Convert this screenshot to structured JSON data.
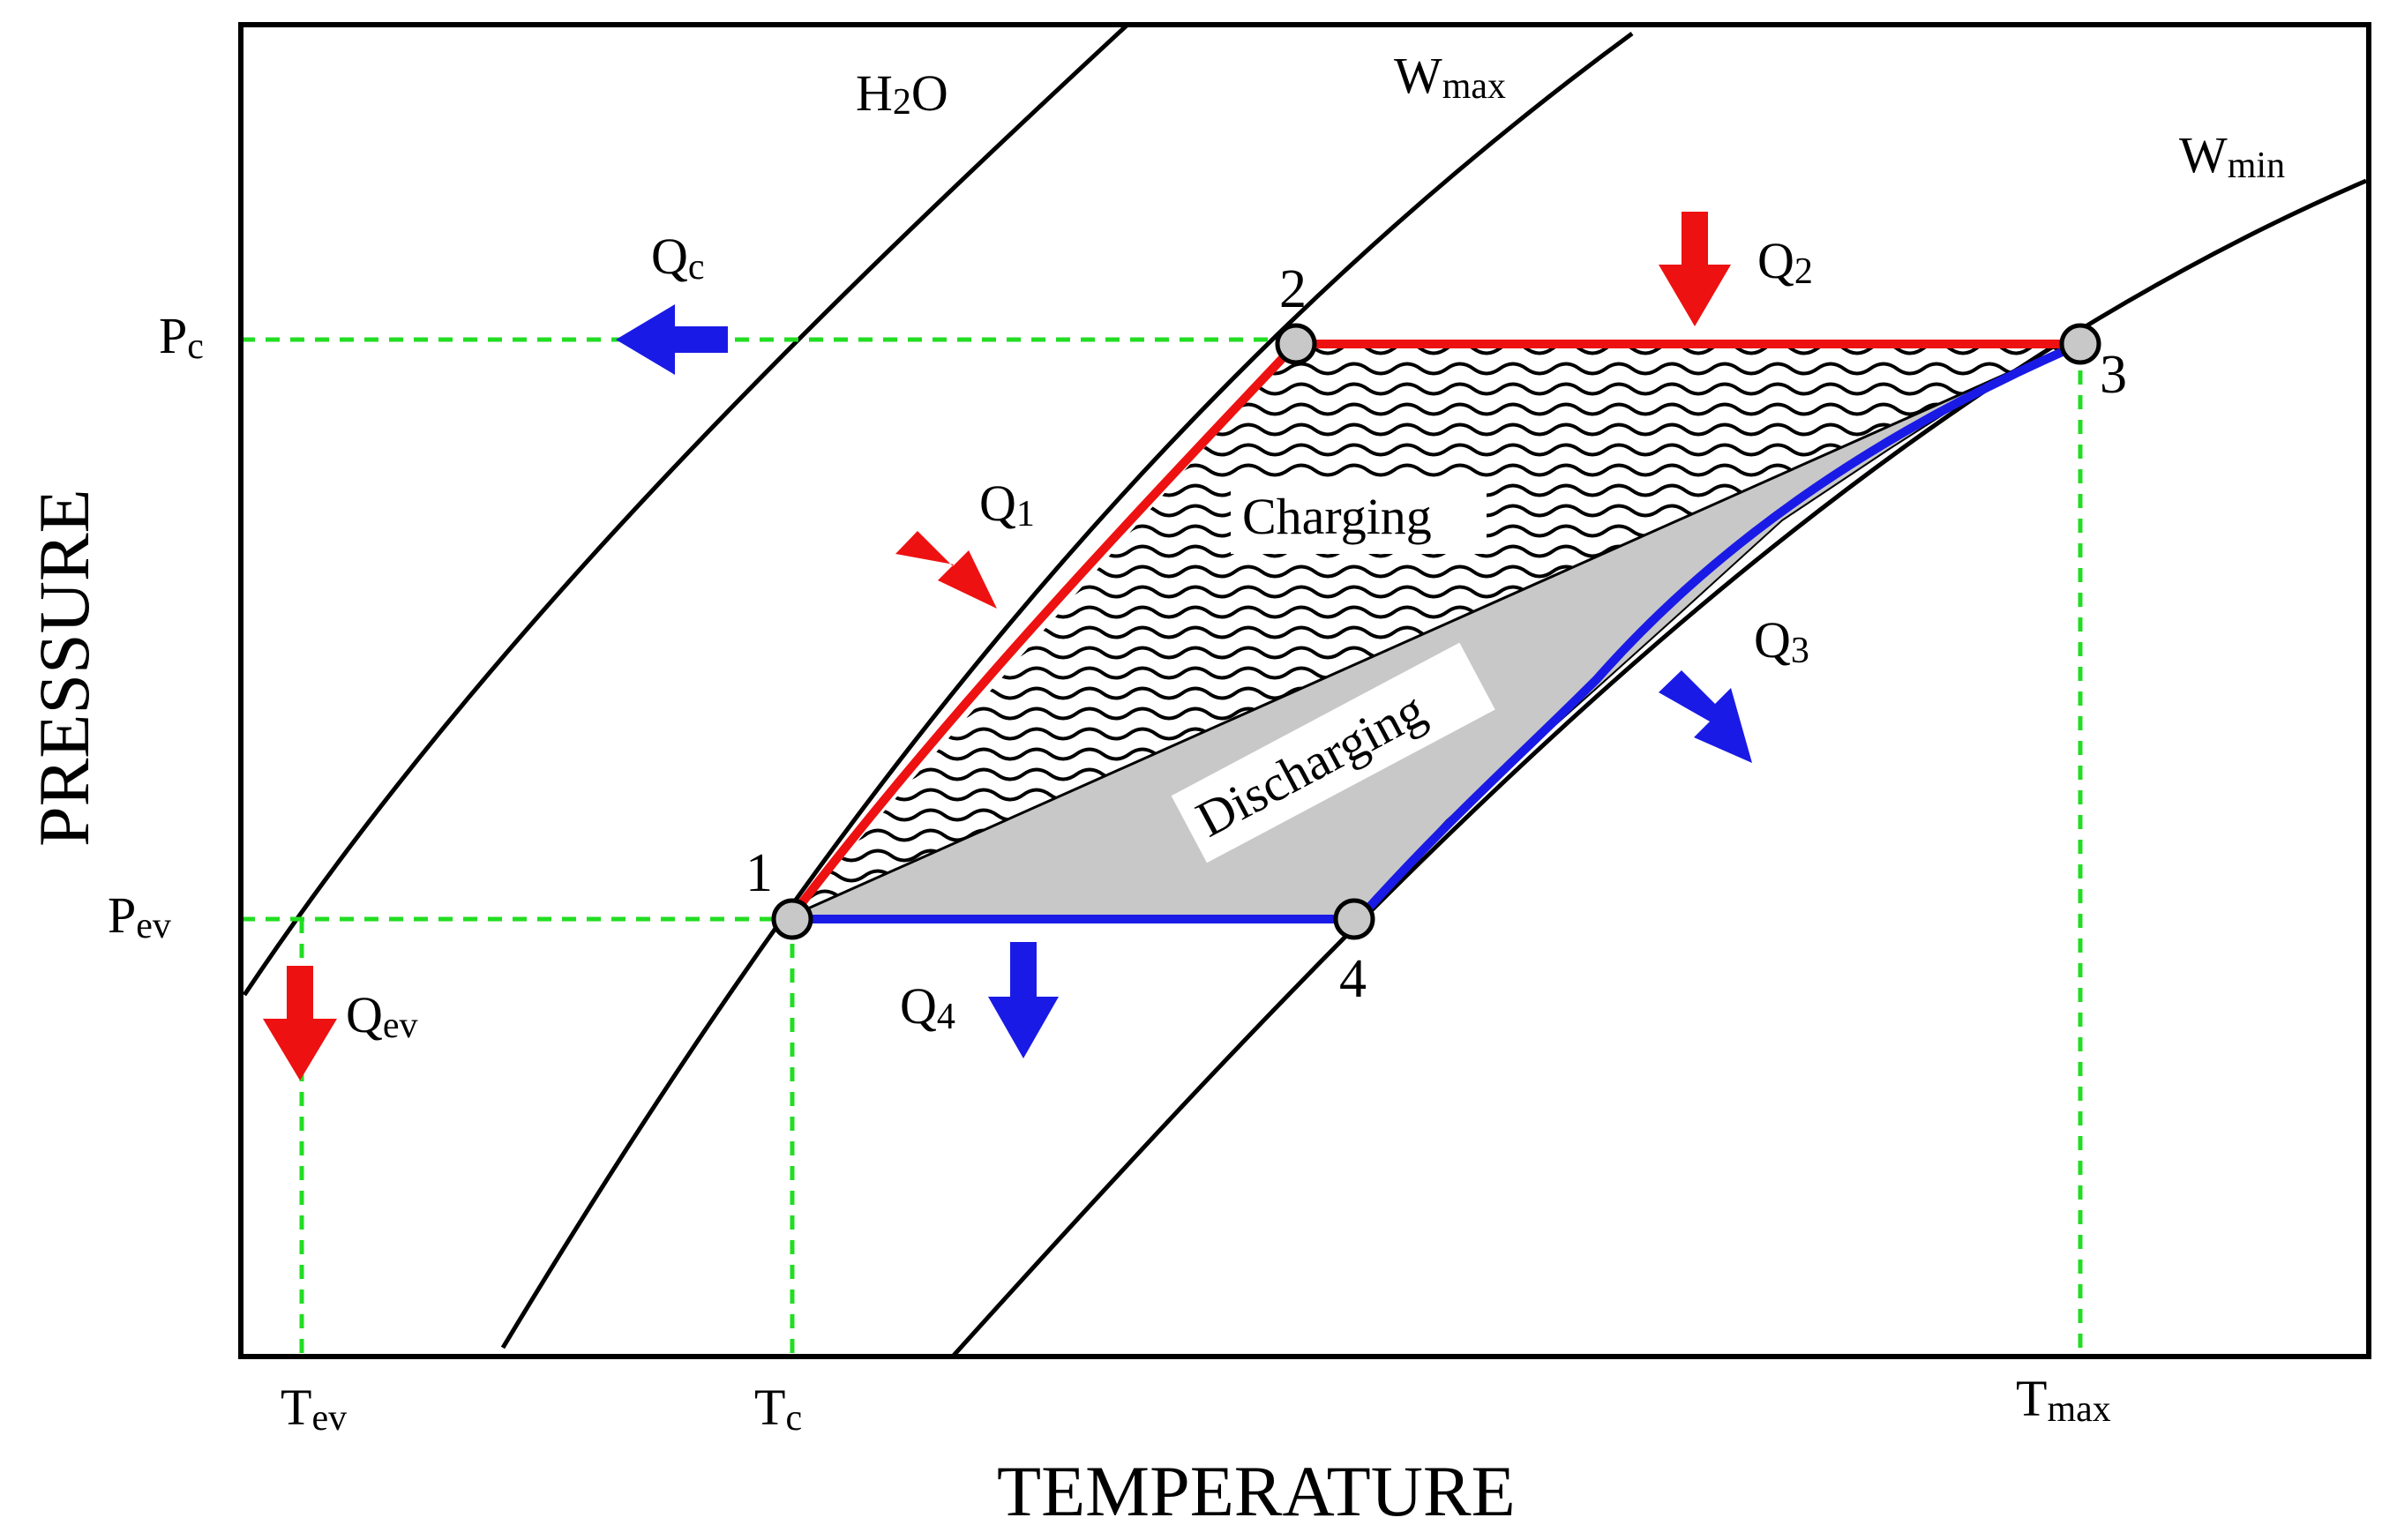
{
  "colors": {
    "heat_in": "#ee1111",
    "heat_out": "#1a1ae6",
    "guide": "#22dd22",
    "discharge_fill": "#c8c8c8"
  },
  "axes": {
    "y_label": "PRESSURE",
    "x_label": "TEMPERATURE"
  },
  "isosteres": [
    {
      "base": "H",
      "sub": "2",
      "tail": "O"
    },
    {
      "base": "W",
      "sub": "max",
      "tail": ""
    },
    {
      "base": "W",
      "sub": "min",
      "tail": ""
    }
  ],
  "pressure_levels": [
    {
      "base": "P",
      "sub": "c"
    },
    {
      "base": "P",
      "sub": "ev"
    }
  ],
  "temperature_levels": [
    {
      "base": "T",
      "sub": "ev"
    },
    {
      "base": "T",
      "sub": "c"
    },
    {
      "base": "T",
      "sub": "max"
    }
  ],
  "state_points": [
    "1",
    "2",
    "3",
    "4"
  ],
  "heat_flows": [
    {
      "base": "Q",
      "sub": "c",
      "direction": "out"
    },
    {
      "base": "Q",
      "sub": "1",
      "direction": "in"
    },
    {
      "base": "Q",
      "sub": "2",
      "direction": "in"
    },
    {
      "base": "Q",
      "sub": "3",
      "direction": "out"
    },
    {
      "base": "Q",
      "sub": "4",
      "direction": "out"
    },
    {
      "base": "Q",
      "sub": "ev",
      "direction": "in"
    }
  ],
  "regions": {
    "charging": "Charging",
    "discharging": "Discharging"
  }
}
